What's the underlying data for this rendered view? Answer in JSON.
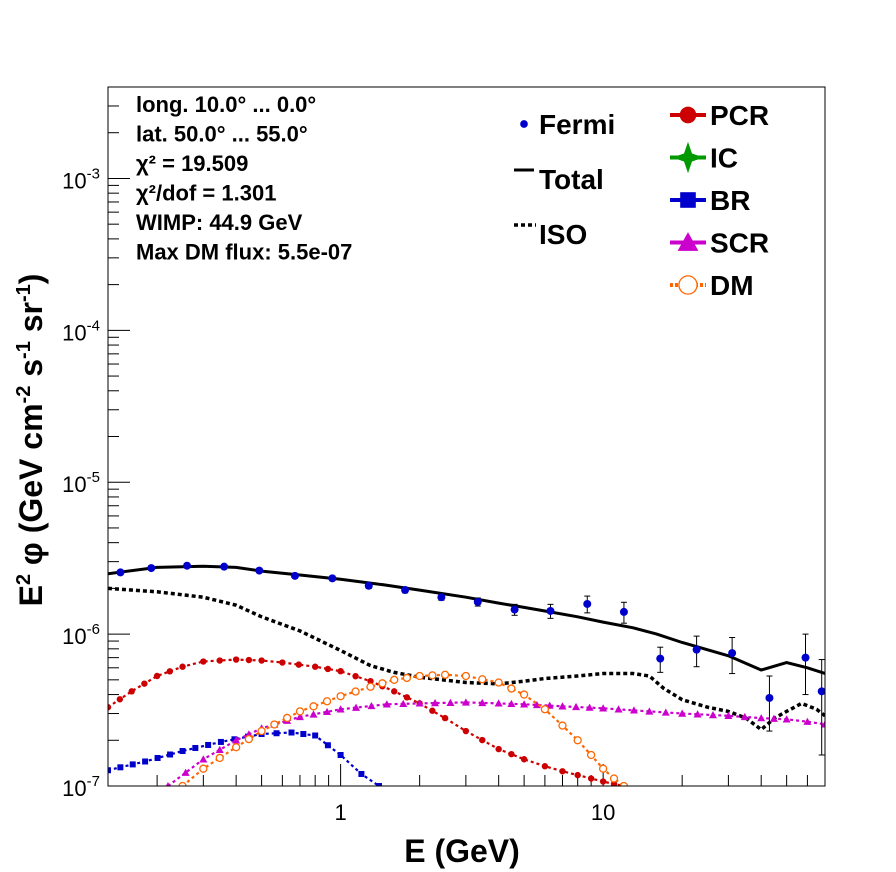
{
  "chart_data": {
    "type": "line",
    "x_scale": "log",
    "y_scale": "log",
    "xlim": [
      0.13,
      70
    ],
    "ylim": [
      1e-07,
      0.004
    ],
    "xlabel": "E (GeV)",
    "ylabel_parts": [
      "E",
      "2",
      " φ (GeV cm",
      "-2",
      " s",
      "-1",
      " sr",
      "-1",
      ")"
    ],
    "x_ticks": [
      {
        "value": 1,
        "label": "1"
      },
      {
        "value": 10,
        "label": "10"
      }
    ],
    "y_ticks": [
      {
        "value": 1e-07,
        "base": "10",
        "exp": "-7"
      },
      {
        "value": 1e-06,
        "base": "10",
        "exp": "-6"
      },
      {
        "value": 1e-05,
        "base": "10",
        "exp": "-5"
      },
      {
        "value": 0.0001,
        "base": "10",
        "exp": "-4"
      },
      {
        "value": 0.001,
        "base": "10",
        "exp": "-3"
      }
    ],
    "info_lines": [
      "long. 10.0° ... 0.0°",
      "lat. 50.0° ... 55.0°",
      "χ² = 19.509",
      "χ²/dof = 1.301",
      "WIMP: 44.9 GeV",
      "Max DM flux: 5.5e-07"
    ],
    "legend_left": [
      {
        "key": "fermi",
        "label": "Fermi",
        "color": "#0000cc",
        "marker": "dot"
      },
      {
        "key": "total",
        "label": "Total",
        "color": "#000000",
        "marker": "line"
      },
      {
        "key": "iso",
        "label": "ISO",
        "color": "#000000",
        "marker": "dotted"
      }
    ],
    "legend_right": [
      {
        "key": "pcr",
        "label": "PCR",
        "color": "#cc0000",
        "marker": "circle"
      },
      {
        "key": "ic",
        "label": "IC",
        "color": "#009900",
        "marker": "star"
      },
      {
        "key": "br",
        "label": "BR",
        "color": "#0000cc",
        "marker": "square"
      },
      {
        "key": "scr",
        "label": "SCR",
        "color": "#cc00cc",
        "marker": "triangle"
      },
      {
        "key": "dm",
        "label": "DM",
        "color": "#ff6600",
        "marker": "open-circle"
      }
    ],
    "fermi": {
      "color": "#0000cc",
      "points": [
        {
          "x": 0.145,
          "y": 2.55e-06,
          "err": 8e-08
        },
        {
          "x": 0.19,
          "y": 2.72e-06,
          "err": 8e-08
        },
        {
          "x": 0.26,
          "y": 2.82e-06,
          "err": 8e-08
        },
        {
          "x": 0.36,
          "y": 2.78e-06,
          "err": 8e-08
        },
        {
          "x": 0.49,
          "y": 2.62e-06,
          "err": 8e-08
        },
        {
          "x": 0.67,
          "y": 2.42e-06,
          "err": 8e-08
        },
        {
          "x": 0.93,
          "y": 2.33e-06,
          "err": 8e-08
        },
        {
          "x": 1.28,
          "y": 2.08e-06,
          "err": 8e-08
        },
        {
          "x": 1.76,
          "y": 1.95e-06,
          "err": 8e-08
        },
        {
          "x": 2.42,
          "y": 1.75e-06,
          "err": 8e-08
        },
        {
          "x": 3.33,
          "y": 1.63e-06,
          "err": 1e-07
        },
        {
          "x": 4.6,
          "y": 1.45e-06,
          "err": 1.2e-07
        },
        {
          "x": 6.3,
          "y": 1.42e-06,
          "err": 1.5e-07
        },
        {
          "x": 8.7,
          "y": 1.58e-06,
          "err": 2e-07
        },
        {
          "x": 12,
          "y": 1.4e-06,
          "err": 2.2e-07
        },
        {
          "x": 16.5,
          "y": 6.9e-07,
          "err": 1.3e-07
        },
        {
          "x": 22.7,
          "y": 7.9e-07,
          "err": 1.8e-07
        },
        {
          "x": 31,
          "y": 7.5e-07,
          "err": 2e-07
        },
        {
          "x": 43,
          "y": 3.8e-07,
          "err": 1.5e-07
        },
        {
          "x": 59,
          "y": 7e-07,
          "err": 3e-07
        },
        {
          "x": 68,
          "y": 4.2e-07,
          "err": 2.6e-07
        }
      ]
    },
    "series": [
      {
        "key": "total",
        "color": "#000000",
        "style": "solid",
        "x": [
          0.13,
          0.2,
          0.3,
          0.4,
          0.5,
          0.7,
          1,
          1.5,
          2,
          3,
          4,
          5,
          6,
          8,
          10,
          13,
          16,
          20,
          30,
          40,
          50,
          60,
          70
        ],
        "y": [
          2.5e-06,
          2.75e-06,
          2.8e-06,
          2.75e-06,
          2.6e-06,
          2.45e-06,
          2.3e-06,
          2.1e-06,
          1.95e-06,
          1.75e-06,
          1.6e-06,
          1.5e-06,
          1.42e-06,
          1.3e-06,
          1.2e-06,
          1.1e-06,
          1e-06,
          8.8e-07,
          7.2e-07,
          5.8e-07,
          6.5e-07,
          6e-07,
          5.5e-07
        ]
      },
      {
        "key": "iso",
        "color": "#000000",
        "style": "dotted",
        "x": [
          0.13,
          0.2,
          0.3,
          0.4,
          0.5,
          0.7,
          1,
          1.3,
          1.6,
          2,
          3,
          4,
          5,
          6,
          8,
          10,
          13,
          15,
          17,
          20,
          25,
          30,
          35,
          40,
          45,
          50,
          57,
          65,
          70
        ],
        "y": [
          2e-06,
          1.9e-06,
          1.75e-06,
          1.55e-06,
          1.3e-06,
          1.05e-06,
          7.8e-07,
          6.2e-07,
          5.6e-07,
          5.2e-07,
          4.8e-07,
          4.7e-07,
          4.9e-07,
          5.1e-07,
          5.3e-07,
          5.5e-07,
          5.5e-07,
          5.3e-07,
          4.4e-07,
          3.7e-07,
          3.3e-07,
          3.1e-07,
          2.8e-07,
          2.35e-07,
          2.8e-07,
          3.1e-07,
          3.5e-07,
          3.2e-07,
          2.9e-07
        ]
      },
      {
        "key": "pcr",
        "color": "#cc0000",
        "style": "marker-circle",
        "x": [
          0.13,
          0.16,
          0.2,
          0.25,
          0.3,
          0.4,
          0.5,
          0.6,
          0.8,
          1,
          1.3,
          1.6,
          2,
          2.5,
          3,
          4,
          5,
          6,
          7,
          8,
          9,
          10,
          11,
          12
        ],
        "y": [
          3.3e-07,
          4.2e-07,
          5.3e-07,
          6.1e-07,
          6.6e-07,
          6.8e-07,
          6.7e-07,
          6.5e-07,
          6.1e-07,
          5.7e-07,
          4.9e-07,
          4.2e-07,
          3.5e-07,
          2.8e-07,
          2.3e-07,
          1.75e-07,
          1.5e-07,
          1.35e-07,
          1.25e-07,
          1.18e-07,
          1.12e-07,
          1.07e-07,
          1.03e-07,
          1e-07
        ]
      },
      {
        "key": "br",
        "color": "#0000cc",
        "style": "marker-square",
        "x": [
          0.13,
          0.18,
          0.25,
          0.35,
          0.5,
          0.65,
          0.8,
          1,
          1.2,
          1.4
        ],
        "y": [
          1.27e-07,
          1.45e-07,
          1.7e-07,
          1.95e-07,
          2.2e-07,
          2.25e-07,
          2.15e-07,
          1.6e-07,
          1.2e-07,
          1e-07
        ]
      },
      {
        "key": "scr",
        "color": "#cc00cc",
        "style": "marker-triangle",
        "x": [
          0.22,
          0.3,
          0.4,
          0.5,
          0.7,
          1,
          1.5,
          2,
          3,
          4,
          5,
          7,
          10,
          15,
          20,
          30,
          40,
          50,
          60,
          70
        ],
        "y": [
          1e-07,
          1.5e-07,
          2e-07,
          2.4e-07,
          2.85e-07,
          3.2e-07,
          3.45e-07,
          3.5e-07,
          3.55e-07,
          3.5e-07,
          3.45e-07,
          3.35e-07,
          3.25e-07,
          3.1e-07,
          3e-07,
          2.9e-07,
          2.8e-07,
          2.75e-07,
          2.65e-07,
          2.55e-07
        ]
      },
      {
        "key": "dm",
        "color": "#ff6600",
        "style": "marker-open-circle",
        "x": [
          0.25,
          0.3,
          0.4,
          0.5,
          0.7,
          1,
          1.3,
          1.6,
          2,
          2.5,
          3,
          4,
          5,
          6,
          7,
          8,
          9,
          10,
          11,
          12
        ],
        "y": [
          1e-07,
          1.3e-07,
          1.8e-07,
          2.3e-07,
          3.1e-07,
          3.9e-07,
          4.5e-07,
          5e-07,
          5.3e-07,
          5.4e-07,
          5.3e-07,
          4.8e-07,
          4e-07,
          3.2e-07,
          2.5e-07,
          2e-07,
          1.6e-07,
          1.3e-07,
          1.12e-07,
          1e-07
        ]
      }
    ]
  }
}
